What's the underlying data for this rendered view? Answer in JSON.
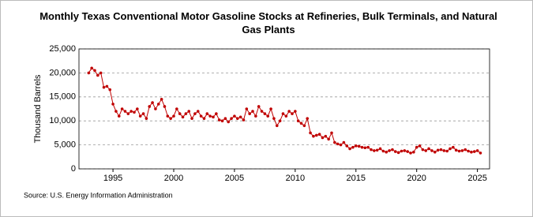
{
  "chart_data": {
    "type": "line",
    "title": "Monthly Texas Conventional Motor Gasoline Stocks at Refineries, Bulk Terminals, and Natural Gas Plants",
    "ylabel": "Thousand Barrels",
    "source": "Source: U.S. Energy Information Administration",
    "xlim": [
      1992.2,
      2026
    ],
    "xticks": [
      1995,
      2000,
      2005,
      2010,
      2015,
      2020,
      2025
    ],
    "ylim": [
      0,
      25000
    ],
    "yticks": [
      0,
      {
        "value": 5000,
        "label": "5,000"
      },
      {
        "value": 10000,
        "label": "10,000"
      },
      {
        "value": 15000,
        "label": "15,000"
      },
      {
        "value": 20000,
        "label": "20,000"
      },
      {
        "value": 25000,
        "label": "25,000"
      }
    ],
    "grid": true,
    "x": [
      1993,
      1993.25,
      1993.5,
      1993.75,
      1994,
      1994.25,
      1994.5,
      1994.75,
      1995,
      1995.25,
      1995.5,
      1995.75,
      1996,
      1996.25,
      1996.5,
      1996.75,
      1997,
      1997.25,
      1997.5,
      1997.75,
      1998,
      1998.25,
      1998.5,
      1998.75,
      1999,
      1999.25,
      1999.5,
      1999.75,
      2000,
      2000.25,
      2000.5,
      2000.75,
      2001,
      2001.25,
      2001.5,
      2001.75,
      2002,
      2002.25,
      2002.5,
      2002.75,
      2003,
      2003.25,
      2003.5,
      2003.75,
      2004,
      2004.25,
      2004.5,
      2004.75,
      2005,
      2005.25,
      2005.5,
      2005.75,
      2006,
      2006.25,
      2006.5,
      2006.75,
      2007,
      2007.25,
      2007.5,
      2007.75,
      2008,
      2008.25,
      2008.5,
      2008.75,
      2009,
      2009.25,
      2009.5,
      2009.75,
      2010,
      2010.25,
      2010.5,
      2010.75,
      2011,
      2011.25,
      2011.5,
      2011.75,
      2012,
      2012.25,
      2012.5,
      2012.75,
      2013,
      2013.25,
      2013.5,
      2013.75,
      2014,
      2014.25,
      2014.5,
      2014.75,
      2015,
      2015.25,
      2015.5,
      2015.75,
      2016,
      2016.25,
      2016.5,
      2016.75,
      2017,
      2017.25,
      2017.5,
      2017.75,
      2018,
      2018.25,
      2018.5,
      2018.75,
      2019,
      2019.25,
      2019.5,
      2019.75,
      2020,
      2020.25,
      2020.5,
      2020.75,
      2021,
      2021.25,
      2021.5,
      2021.75,
      2022,
      2022.25,
      2022.5,
      2022.75,
      2023,
      2023.25,
      2023.5,
      2023.75,
      2024,
      2024.25,
      2024.5,
      2024.75,
      2025,
      2025.25
    ],
    "series": [
      {
        "name": "Texas Conventional Motor Gasoline Stocks",
        "color": "#c00000",
        "values": [
          20000,
          21000,
          20500,
          19500,
          20000,
          17000,
          17200,
          16500,
          13500,
          12000,
          11000,
          12500,
          12000,
          11500,
          12000,
          11800,
          12500,
          11000,
          11500,
          10500,
          13000,
          13800,
          12500,
          13500,
          14500,
          13000,
          11000,
          10500,
          11000,
          12500,
          11500,
          10800,
          11500,
          12000,
          10500,
          11500,
          12000,
          11000,
          10500,
          11500,
          11000,
          10800,
          11500,
          10200,
          10000,
          10500,
          9800,
          10500,
          11000,
          10500,
          10800,
          10200,
          12500,
          11500,
          12000,
          11000,
          13000,
          12000,
          11500,
          11000,
          12500,
          10500,
          9000,
          10000,
          11500,
          11000,
          12000,
          11500,
          12000,
          10000,
          9500,
          9000,
          10500,
          7500,
          6800,
          7000,
          7200,
          6500,
          6800,
          6200,
          7500,
          5500,
          5200,
          5000,
          5500,
          4800,
          4200,
          4500,
          4800,
          4700,
          4500,
          4400,
          4500,
          4000,
          3800,
          3900,
          4200,
          3700,
          3500,
          3800,
          4000,
          3600,
          3400,
          3700,
          3800,
          3600,
          3300,
          3500,
          4500,
          4800,
          4000,
          3800,
          4200,
          3800,
          3500,
          3900,
          4000,
          3800,
          3700,
          4200,
          4500,
          3900,
          3700,
          3800,
          4000,
          3700,
          3500,
          3600,
          3800,
          3300
        ]
      }
    ]
  }
}
